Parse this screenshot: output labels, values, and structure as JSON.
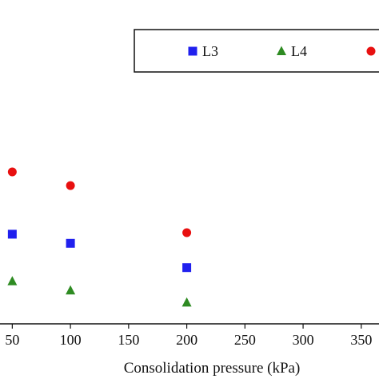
{
  "chart_data": {
    "type": "scatter",
    "title": "",
    "xlabel": "Consolidation pressure (kPa)",
    "ylabel": "",
    "xlim": [
      47,
      357
    ],
    "x_ticks": [
      50,
      100,
      150,
      200,
      250,
      300,
      350
    ],
    "x_tick_labels": [
      "50",
      "100",
      "150",
      "200",
      "250",
      "300",
      "350"
    ],
    "grid": false,
    "legend_position": "top-right",
    "series": [
      {
        "name": "L3",
        "marker": "square",
        "color": "#2020ee",
        "x": [
          50,
          100,
          200
        ],
        "y": [
          0.295,
          0.265,
          0.185
        ]
      },
      {
        "name": "L4",
        "marker": "triangle",
        "color": "#2e8b22",
        "x": [
          50,
          100,
          200
        ],
        "y": [
          0.14,
          0.11,
          0.07
        ]
      },
      {
        "name": "",
        "marker": "circle",
        "color": "#e81010",
        "x": [
          50,
          100,
          200
        ],
        "y": [
          0.5,
          0.455,
          0.3
        ]
      }
    ]
  }
}
